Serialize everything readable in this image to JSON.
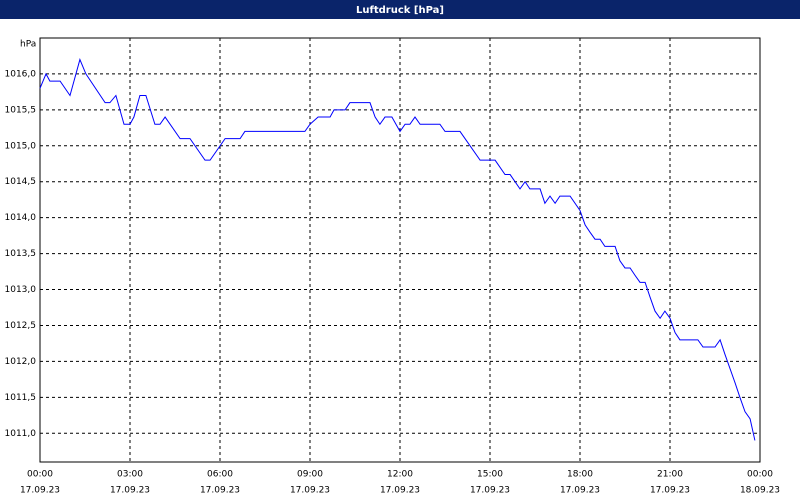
{
  "chart_data": {
    "type": "line",
    "title": "Luftdruck [hPa]",
    "y_label": "hPa",
    "x": [
      0,
      0.2,
      0.33,
      0.67,
      1,
      1.33,
      1.53,
      2.17,
      2.33,
      2.53,
      2.8,
      3,
      3.13,
      3.33,
      3.53,
      3.83,
      4,
      4.17,
      4.67,
      5,
      5.5,
      5.67,
      6.17,
      6.67,
      6.83,
      8.83,
      9,
      9.27,
      9.67,
      9.8,
      10.17,
      10.33,
      11,
      11.17,
      11.33,
      11.5,
      11.73,
      12,
      12.17,
      12.33,
      12.5,
      12.67,
      13.33,
      13.5,
      14,
      14.67,
      15.17,
      15.5,
      15.67,
      16,
      16.17,
      16.33,
      16.67,
      16.83,
      17,
      17.17,
      17.33,
      17.67,
      18,
      18.17,
      18.33,
      18.5,
      18.67,
      18.83,
      19.17,
      19.33,
      19.5,
      19.67,
      19.83,
      20,
      20.17,
      20.33,
      20.5,
      20.67,
      20.83,
      21,
      21.17,
      21.33,
      21.93,
      22.1,
      22.5,
      22.67,
      22.83,
      23.17,
      23.33,
      23.5,
      23.67,
      23.83
    ],
    "series": [
      {
        "name": "Luftdruck",
        "color": "#0000ff",
        "values": [
          1015.8,
          1016.0,
          1015.9,
          1015.9,
          1015.7,
          1016.2,
          1016.0,
          1015.6,
          1015.6,
          1015.7,
          1015.3,
          1015.3,
          1015.4,
          1015.7,
          1015.7,
          1015.3,
          1015.3,
          1015.4,
          1015.1,
          1015.1,
          1014.8,
          1014.8,
          1015.1,
          1015.1,
          1015.2,
          1015.2,
          1015.3,
          1015.4,
          1015.4,
          1015.5,
          1015.5,
          1015.6,
          1015.6,
          1015.4,
          1015.3,
          1015.4,
          1015.4,
          1015.2,
          1015.3,
          1015.3,
          1015.4,
          1015.3,
          1015.3,
          1015.2,
          1015.2,
          1014.8,
          1014.8,
          1014.6,
          1014.6,
          1014.4,
          1014.5,
          1014.4,
          1014.4,
          1014.2,
          1014.3,
          1014.2,
          1014.3,
          1014.3,
          1014.1,
          1013.9,
          1013.8,
          1013.7,
          1013.7,
          1013.6,
          1013.6,
          1013.4,
          1013.3,
          1013.3,
          1013.2,
          1013.1,
          1013.1,
          1012.9,
          1012.7,
          1012.6,
          1012.7,
          1012.6,
          1012.4,
          1012.3,
          1012.3,
          1012.2,
          1012.2,
          1012.3,
          1012.1,
          1011.7,
          1011.5,
          1011.3,
          1011.2,
          1010.9
        ]
      }
    ],
    "xlim": [
      0,
      24
    ],
    "xticks": [
      {
        "value": 0,
        "label": "00:00"
      },
      {
        "value": 3,
        "label": "03:00"
      },
      {
        "value": 6,
        "label": "06:00"
      },
      {
        "value": 9,
        "label": "09:00"
      },
      {
        "value": 12,
        "label": "12:00"
      },
      {
        "value": 15,
        "label": "15:00"
      },
      {
        "value": 18,
        "label": "18:00"
      },
      {
        "value": 21,
        "label": "21:00"
      },
      {
        "value": 24,
        "label": "00:00"
      }
    ],
    "xtick_dates": [
      "17.09.23",
      "17.09.23",
      "17.09.23",
      "17.09.23",
      "17.09.23",
      "17.09.23",
      "17.09.23",
      "17.09.23",
      "18.09.23"
    ],
    "ylim": [
      1010.6,
      1016.5
    ],
    "yticks": [
      {
        "value": 1011,
        "label": "1011,0"
      },
      {
        "value": 1011.5,
        "label": "1011,5"
      },
      {
        "value": 1012,
        "label": "1012,0"
      },
      {
        "value": 1012.5,
        "label": "1012,5"
      },
      {
        "value": 1013,
        "label": "1013,0"
      },
      {
        "value": 1013.5,
        "label": "1013,5"
      },
      {
        "value": 1014,
        "label": "1014,0"
      },
      {
        "value": 1014.5,
        "label": "1014,5"
      },
      {
        "value": 1015,
        "label": "1015,0"
      },
      {
        "value": 1015.5,
        "label": "1015,5"
      },
      {
        "value": 1016,
        "label": "1016,0"
      }
    ],
    "grid": true
  }
}
